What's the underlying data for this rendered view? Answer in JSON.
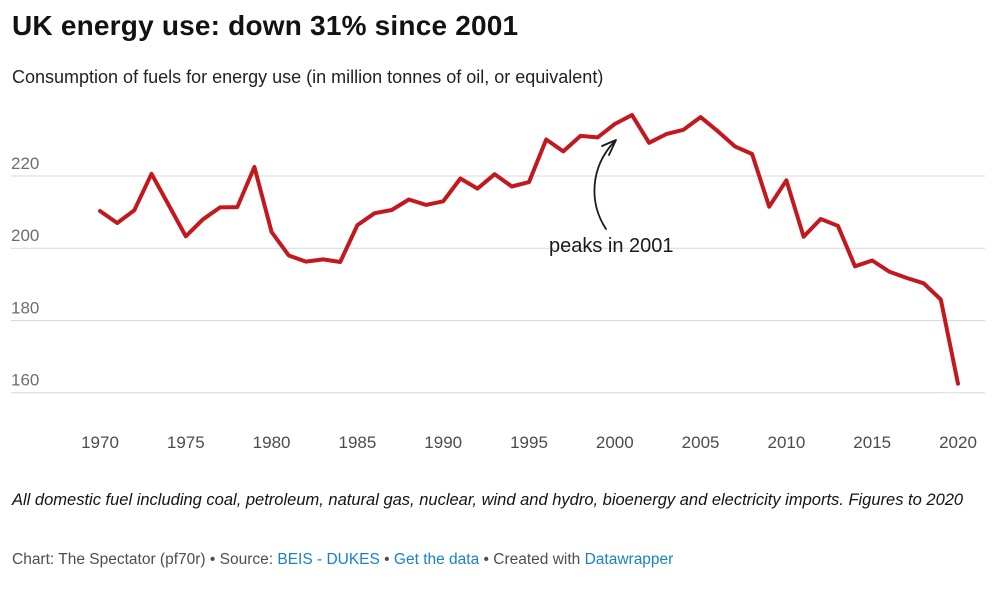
{
  "header": {
    "title": "UK energy use: down 31% since 2001",
    "subtitle": "Consumption of fuels for energy use (in million tonnes of oil, or equivalent)"
  },
  "chart_data": {
    "type": "line",
    "title": "UK energy use: down 31% since 2001",
    "subtitle": "Consumption of fuels for energy use (in million tonnes of oil, or equivalent)",
    "x": [
      1970,
      1971,
      1972,
      1973,
      1974,
      1975,
      1976,
      1977,
      1978,
      1979,
      1980,
      1981,
      1982,
      1983,
      1984,
      1985,
      1986,
      1987,
      1988,
      1989,
      1990,
      1991,
      1992,
      1993,
      1994,
      1995,
      1996,
      1997,
      1998,
      1999,
      2000,
      2001,
      2002,
      2003,
      2004,
      2005,
      2006,
      2007,
      2008,
      2009,
      2010,
      2011,
      2012,
      2013,
      2014,
      2015,
      2016,
      2017,
      2018,
      2019,
      2020
    ],
    "values": [
      210.3,
      207.0,
      210.5,
      220.6,
      212.0,
      203.3,
      208.0,
      211.3,
      211.4,
      222.5,
      204.5,
      198.0,
      196.3,
      196.9,
      196.2,
      206.4,
      209.7,
      210.6,
      213.5,
      212.0,
      213.0,
      219.3,
      216.5,
      220.5,
      217.1,
      218.3,
      230.1,
      226.8,
      231.1,
      230.7,
      234.4,
      236.9,
      229.2,
      231.6,
      232.8,
      236.3,
      232.4,
      228.2,
      226.1,
      211.5,
      218.8,
      203.2,
      208.1,
      206.2,
      195.0,
      196.6,
      193.5,
      191.8,
      190.3,
      185.8,
      162.5
    ],
    "y_ticks": [
      160,
      180,
      200,
      220
    ],
    "x_ticks": [
      1970,
      1975,
      1980,
      1985,
      1990,
      1995,
      2000,
      2005,
      2010,
      2015,
      2020
    ],
    "ylim": [
      152,
      242
    ],
    "xlim": [
      1970,
      2020
    ],
    "grid": "horizontal",
    "legend": "none",
    "line_color": "#c2181e",
    "grid_color": "#d9d9d9",
    "y_tick_color": "#6e6e6e",
    "x_tick_color": "#4c4c4c",
    "annotation": {
      "text": "peaks in 2001",
      "target_year": 2001,
      "target_value": 236.9
    }
  },
  "footer": {
    "note": "All domestic fuel including coal, petroleum, natural gas, nuclear, wind and hydro, bioenergy and electricity imports. Figures to 2020",
    "byline": {
      "chart_label": "Chart: ",
      "chart_credit": "The Spectator (pf70r)",
      "sep1": " • ",
      "source_label": "Source: ",
      "source_link": "BEIS - DUKES",
      "sep2": " • ",
      "get_data_link": "Get the data",
      "sep3": " • ",
      "created_label": "Created with ",
      "tool_link": "Datawrapper"
    },
    "link_color": "#1a82c2"
  }
}
